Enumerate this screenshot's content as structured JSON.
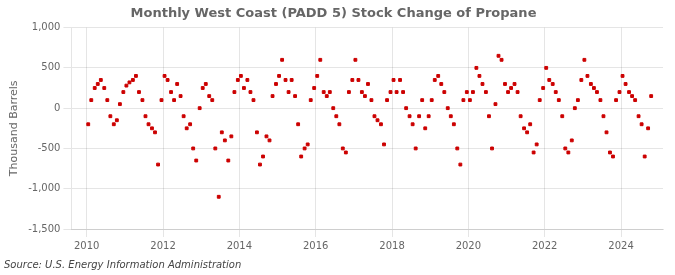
{
  "chart_data": {
    "type": "scatter",
    "title": "Monthly West Coast (PADD 5) Stock Change of Propane",
    "ylabel": "Thousand Barrels",
    "annotations": [
      "Source: U.S. Energy Information Administration"
    ],
    "color": "#cc0000",
    "marker": "square",
    "grid": true,
    "xlim": [
      2009.6,
      2025.1
    ],
    "xticks": [
      2010,
      2012,
      2014,
      2016,
      2018,
      2020,
      2022,
      2024
    ],
    "ylim": [
      -1500,
      1000
    ],
    "yticks": [
      {
        "value": -1500,
        "label": "-1,500"
      },
      {
        "value": -1000,
        "label": "-1,000"
      },
      -500,
      0,
      500,
      {
        "value": 1000,
        "label": "1,000"
      }
    ],
    "x": [
      2010.04,
      2010.12,
      2010.21,
      2010.29,
      2010.37,
      2010.46,
      2010.54,
      2010.62,
      2010.71,
      2010.79,
      2010.87,
      2010.96,
      2011.04,
      2011.12,
      2011.21,
      2011.29,
      2011.37,
      2011.46,
      2011.54,
      2011.62,
      2011.71,
      2011.79,
      2011.87,
      2011.96,
      2012.04,
      2012.12,
      2012.21,
      2012.29,
      2012.37,
      2012.46,
      2012.54,
      2012.62,
      2012.71,
      2012.79,
      2012.87,
      2012.96,
      2013.04,
      2013.12,
      2013.21,
      2013.29,
      2013.37,
      2013.46,
      2013.54,
      2013.62,
      2013.71,
      2013.79,
      2013.87,
      2013.96,
      2014.04,
      2014.12,
      2014.21,
      2014.29,
      2014.37,
      2014.46,
      2014.54,
      2014.62,
      2014.71,
      2014.79,
      2014.87,
      2014.96,
      2015.04,
      2015.12,
      2015.21,
      2015.29,
      2015.37,
      2015.46,
      2015.54,
      2015.62,
      2015.71,
      2015.79,
      2015.87,
      2015.96,
      2016.04,
      2016.12,
      2016.21,
      2016.29,
      2016.37,
      2016.46,
      2016.54,
      2016.62,
      2016.71,
      2016.79,
      2016.87,
      2016.96,
      2017.04,
      2017.12,
      2017.21,
      2017.29,
      2017.37,
      2017.46,
      2017.54,
      2017.62,
      2017.71,
      2017.79,
      2017.87,
      2017.96,
      2018.04,
      2018.12,
      2018.21,
      2018.29,
      2018.37,
      2018.46,
      2018.54,
      2018.62,
      2018.71,
      2018.79,
      2018.87,
      2018.96,
      2019.04,
      2019.12,
      2019.21,
      2019.29,
      2019.37,
      2019.46,
      2019.54,
      2019.62,
      2019.71,
      2019.79,
      2019.87,
      2019.96,
      2020.04,
      2020.12,
      2020.21,
      2020.29,
      2020.37,
      2020.46,
      2020.54,
      2020.62,
      2020.71,
      2020.79,
      2020.87,
      2020.96,
      2021.04,
      2021.12,
      2021.21,
      2021.29,
      2021.37,
      2021.46,
      2021.54,
      2021.62,
      2021.71,
      2021.79,
      2021.87,
      2021.96,
      2022.04,
      2022.12,
      2022.21,
      2022.29,
      2022.37,
      2022.46,
      2022.54,
      2022.62,
      2022.71,
      2022.79,
      2022.87,
      2022.96,
      2023.04,
      2023.12,
      2023.21,
      2023.29,
      2023.37,
      2023.46,
      2023.54,
      2023.62,
      2023.71,
      2023.79,
      2023.87,
      2023.96,
      2024.04,
      2024.12,
      2024.21,
      2024.29,
      2024.37,
      2024.46,
      2024.54,
      2024.62,
      2024.71,
      2024.79
    ],
    "values": [
      -200,
      100,
      250,
      300,
      350,
      250,
      100,
      -100,
      -200,
      -150,
      50,
      200,
      280,
      320,
      350,
      400,
      200,
      100,
      -100,
      -200,
      -250,
      -300,
      -700,
      100,
      400,
      350,
      200,
      100,
      300,
      150,
      -100,
      -250,
      -200,
      -500,
      -650,
      0,
      250,
      300,
      150,
      100,
      -500,
      -1100,
      -300,
      -400,
      -650,
      -350,
      200,
      350,
      400,
      250,
      350,
      200,
      100,
      -300,
      -700,
      -600,
      -350,
      -400,
      150,
      300,
      400,
      600,
      350,
      200,
      350,
      150,
      -200,
      -600,
      -500,
      -450,
      100,
      250,
      400,
      600,
      200,
      150,
      200,
      0,
      -100,
      -200,
      -500,
      -550,
      200,
      350,
      600,
      350,
      200,
      150,
      300,
      100,
      -100,
      -150,
      -200,
      -450,
      100,
      200,
      350,
      200,
      350,
      200,
      0,
      -100,
      -200,
      -500,
      -100,
      100,
      -250,
      -100,
      100,
      350,
      400,
      300,
      200,
      0,
      -100,
      -200,
      -500,
      -700,
      100,
      200,
      100,
      200,
      500,
      400,
      300,
      200,
      -100,
      -500,
      50,
      650,
      600,
      300,
      200,
      250,
      300,
      200,
      -100,
      -250,
      -300,
      -200,
      -550,
      -450,
      100,
      250,
      500,
      350,
      300,
      200,
      100,
      -100,
      -500,
      -550,
      -400,
      0,
      100,
      350,
      600,
      400,
      300,
      250,
      200,
      100,
      -100,
      -300,
      -550,
      -600,
      100,
      200,
      400,
      300,
      200,
      150,
      100,
      -100,
      -200,
      -600,
      -250,
      150
    ]
  }
}
